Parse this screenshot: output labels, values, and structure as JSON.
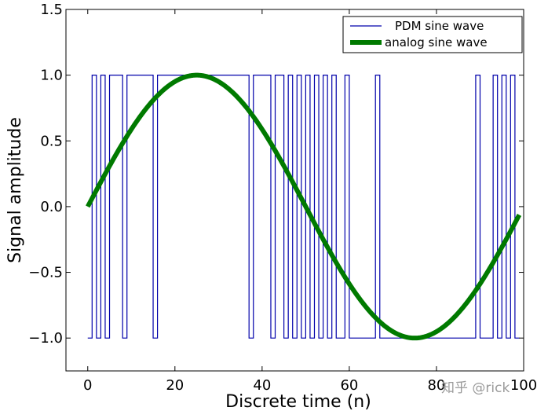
{
  "chart_data": {
    "type": "line",
    "title": "",
    "xlabel": "Discrete time (n)",
    "ylabel": "Signal amplitude",
    "xlim": [
      -5,
      100
    ],
    "ylim": [
      -1.25,
      1.5
    ],
    "xticks": [
      0,
      20,
      40,
      60,
      80,
      100
    ],
    "xtick_labels": [
      "0",
      "20",
      "40",
      "60",
      "80",
      "100"
    ],
    "yticks": [
      1.5,
      1.0,
      0.5,
      0.0,
      -0.5,
      -1.0
    ],
    "ytick_labels": [
      "1.5",
      "1.0",
      "0.5",
      "0.0",
      "−0.5",
      "−1.0"
    ],
    "grid": false,
    "legend_position": "top-right",
    "series": [
      {
        "name": "PDM sine wave",
        "style": "step",
        "color": "#0000aa",
        "x": [
          0,
          1,
          2,
          3,
          4,
          5,
          6,
          7,
          8,
          9,
          10,
          11,
          12,
          13,
          14,
          15,
          16,
          17,
          18,
          19,
          20,
          21,
          22,
          23,
          24,
          25,
          26,
          27,
          28,
          29,
          30,
          31,
          32,
          33,
          34,
          35,
          36,
          37,
          38,
          39,
          40,
          41,
          42,
          43,
          44,
          45,
          46,
          47,
          48,
          49,
          50,
          51,
          52,
          53,
          54,
          55,
          56,
          57,
          58,
          59,
          60,
          61,
          62,
          63,
          64,
          65,
          66,
          67,
          68,
          69,
          70,
          71,
          72,
          73,
          74,
          75,
          76,
          77,
          78,
          79,
          80,
          81,
          82,
          83,
          84,
          85,
          86,
          87,
          88,
          89,
          90,
          91,
          92,
          93,
          94,
          95,
          96,
          97,
          98,
          99
        ],
        "y": [
          -1,
          1,
          -1,
          1,
          -1,
          1,
          1,
          1,
          -1,
          1,
          1,
          1,
          1,
          1,
          1,
          -1,
          1,
          1,
          1,
          1,
          1,
          1,
          1,
          1,
          1,
          1,
          1,
          1,
          1,
          1,
          1,
          1,
          1,
          1,
          1,
          1,
          1,
          -1,
          1,
          1,
          1,
          1,
          -1,
          1,
          1,
          -1,
          1,
          -1,
          1,
          -1,
          1,
          -1,
          1,
          -1,
          1,
          -1,
          1,
          -1,
          -1,
          1,
          -1,
          -1,
          -1,
          -1,
          -1,
          -1,
          1,
          -1,
          -1,
          -1,
          -1,
          -1,
          -1,
          -1,
          -1,
          -1,
          -1,
          -1,
          -1,
          -1,
          -1,
          -1,
          -1,
          -1,
          -1,
          -1,
          -1,
          -1,
          -1,
          1,
          -1,
          -1,
          -1,
          1,
          -1,
          1,
          -1,
          1,
          -1,
          -1
        ]
      },
      {
        "name": "analog sine wave",
        "style": "line",
        "color": "#007a00",
        "function": "sin(2*pi*n/100)",
        "x_range": [
          0,
          99
        ]
      }
    ]
  },
  "watermark": "知乎 @rick"
}
